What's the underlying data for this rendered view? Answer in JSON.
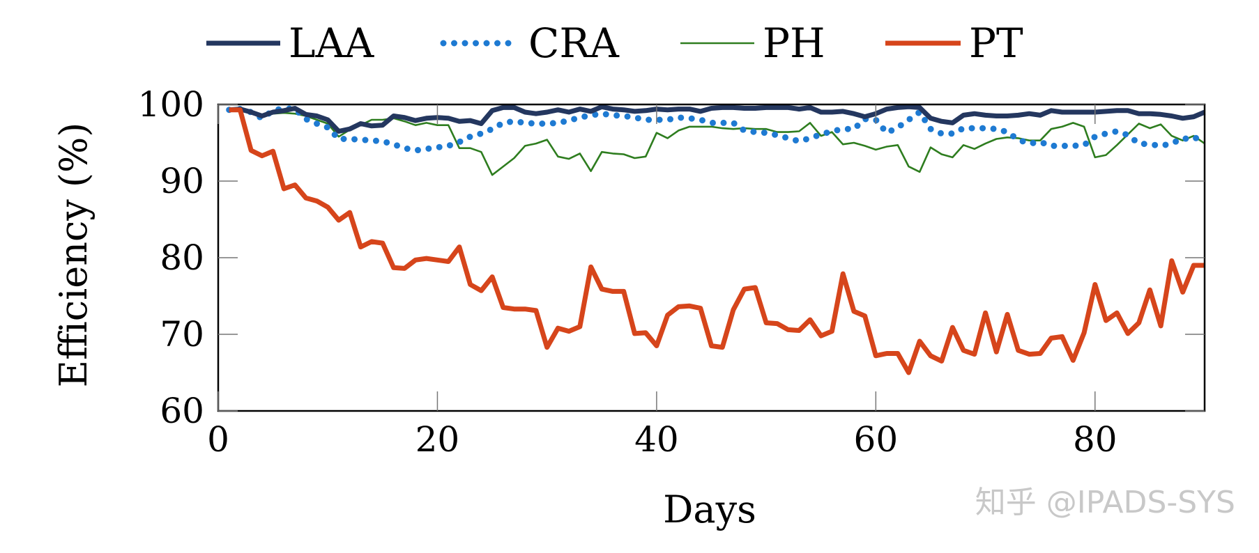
{
  "chart_data": {
    "type": "line",
    "title": "",
    "xlabel": "Days",
    "ylabel": "Efficiency (%)",
    "xlim": [
      0,
      90
    ],
    "ylim": [
      60,
      100
    ],
    "xticks": [
      0,
      20,
      40,
      60,
      80
    ],
    "yticks": [
      60,
      70,
      80,
      90,
      100
    ],
    "grid": false,
    "legend_position": "top",
    "x": [
      1,
      2,
      3,
      4,
      5,
      6,
      7,
      8,
      9,
      10,
      11,
      12,
      13,
      14,
      15,
      16,
      17,
      18,
      19,
      20,
      21,
      22,
      23,
      24,
      25,
      26,
      27,
      28,
      29,
      30,
      31,
      32,
      33,
      34,
      35,
      36,
      37,
      38,
      39,
      40,
      41,
      42,
      43,
      44,
      45,
      46,
      47,
      48,
      49,
      50,
      51,
      52,
      53,
      54,
      55,
      56,
      57,
      58,
      59,
      60,
      61,
      62,
      63,
      64,
      65,
      66,
      67,
      68,
      69,
      70,
      71,
      72,
      73,
      74,
      75,
      76,
      77,
      78,
      79,
      80,
      81,
      82,
      83,
      84,
      85,
      86,
      87,
      88,
      89,
      90
    ],
    "series": [
      {
        "name": "LAA",
        "color": "#24375f",
        "style": "solid-thick",
        "values": [
          99.3,
          99.4,
          99.0,
          98.5,
          99.0,
          99.2,
          99.5,
          98.7,
          98.5,
          98.0,
          96.5,
          96.8,
          97.5,
          97.2,
          97.3,
          98.5,
          98.3,
          97.9,
          98.2,
          98.3,
          98.2,
          97.8,
          97.9,
          97.5,
          99.2,
          99.6,
          99.6,
          99.0,
          98.8,
          99.0,
          99.3,
          99.0,
          99.4,
          99.1,
          99.7,
          99.4,
          99.3,
          99.1,
          99.2,
          99.4,
          99.3,
          99.4,
          99.4,
          99.1,
          99.5,
          99.6,
          99.6,
          99.5,
          99.5,
          99.6,
          99.6,
          99.6,
          99.4,
          99.6,
          99.0,
          99.0,
          99.1,
          98.8,
          98.4,
          98.8,
          99.4,
          99.6,
          99.7,
          99.6,
          98.2,
          97.8,
          97.6,
          98.6,
          98.8,
          98.6,
          98.5,
          98.5,
          98.6,
          98.8,
          98.6,
          99.2,
          99.0,
          99.0,
          99.0,
          99.0,
          99.1,
          99.2,
          99.2,
          98.8,
          98.8,
          98.7,
          98.5,
          98.2,
          98.4,
          99.0
        ]
      },
      {
        "name": "CRA",
        "color": "#1e7ad2",
        "style": "dotted",
        "values": [
          99.3,
          99.4,
          99.0,
          98.2,
          99.2,
          99.5,
          99.4,
          98.1,
          97.5,
          97.0,
          95.5,
          95.5,
          95.4,
          95.3,
          95.2,
          94.8,
          94.3,
          94.0,
          94.2,
          94.4,
          94.6,
          95.1,
          95.8,
          96.2,
          96.8,
          97.6,
          97.8,
          97.6,
          97.5,
          97.5,
          97.6,
          97.9,
          98.3,
          98.6,
          98.8,
          98.6,
          98.5,
          98.3,
          98.0,
          98.0,
          98.0,
          98.3,
          98.2,
          98.0,
          97.6,
          97.6,
          97.6,
          96.6,
          96.4,
          96.3,
          96.0,
          95.6,
          95.2,
          95.6,
          96.1,
          96.5,
          96.8,
          96.8,
          98.1,
          98.0,
          96.3,
          97.0,
          98.0,
          99.0,
          96.8,
          96.2,
          96.2,
          96.9,
          96.9,
          96.9,
          96.8,
          96.4,
          95.4,
          94.9,
          95.1,
          94.6,
          94.6,
          94.6,
          94.7,
          95.8,
          96.2,
          96.5,
          96.0,
          94.9,
          94.8,
          94.6,
          94.9,
          95.6,
          95.4,
          96.4
        ]
      },
      {
        "name": "PH",
        "color": "#2e7d1f",
        "style": "solid-thin",
        "values": [
          99.3,
          99.4,
          99.0,
          98.5,
          98.8,
          98.9,
          98.8,
          98.5,
          98.0,
          97.5,
          95.8,
          96.7,
          97.3,
          98.0,
          98.0,
          98.2,
          97.8,
          97.3,
          97.6,
          97.3,
          97.3,
          94.3,
          94.3,
          93.8,
          90.8,
          91.9,
          93.0,
          94.6,
          94.9,
          95.4,
          93.2,
          92.9,
          93.6,
          91.3,
          93.8,
          93.6,
          93.5,
          93.0,
          93.2,
          96.3,
          95.6,
          96.6,
          97.1,
          97.1,
          97.1,
          96.9,
          96.8,
          96.9,
          96.8,
          96.8,
          96.4,
          96.4,
          96.5,
          97.6,
          95.9,
          96.4,
          94.8,
          95.0,
          94.6,
          94.1,
          94.5,
          94.7,
          91.9,
          91.2,
          94.4,
          93.5,
          93.1,
          94.7,
          94.2,
          94.9,
          95.5,
          95.7,
          95.6,
          95.3,
          95.3,
          96.8,
          97.1,
          97.6,
          97.1,
          93.1,
          93.4,
          94.7,
          96.1,
          97.5,
          96.9,
          97.4,
          95.9,
          95.3,
          95.9,
          94.9
        ]
      },
      {
        "name": "PT",
        "color": "#d6451b",
        "style": "solid-thick",
        "values": [
          99.3,
          99.3,
          94.0,
          93.3,
          93.9,
          89.0,
          89.5,
          87.8,
          87.4,
          86.6,
          84.9,
          85.9,
          81.4,
          82.1,
          81.9,
          78.7,
          78.6,
          79.7,
          79.9,
          79.7,
          79.5,
          81.4,
          76.5,
          75.7,
          77.5,
          73.5,
          73.3,
          73.3,
          73.1,
          68.3,
          70.8,
          70.4,
          71.0,
          78.8,
          75.9,
          75.6,
          75.6,
          70.1,
          70.2,
          68.5,
          72.5,
          73.6,
          73.7,
          73.4,
          68.5,
          68.3,
          73.2,
          75.9,
          76.1,
          71.5,
          71.4,
          70.6,
          70.5,
          71.9,
          69.8,
          70.4,
          77.9,
          73.0,
          72.4,
          67.2,
          67.5,
          67.5,
          65.0,
          69.1,
          67.2,
          66.5,
          70.9,
          67.9,
          67.4,
          72.8,
          67.7,
          72.6,
          67.9,
          67.4,
          67.5,
          69.5,
          69.7,
          66.6,
          70.2,
          76.5,
          71.8,
          72.8,
          70.1,
          71.5,
          75.8,
          71.1,
          79.6,
          75.5,
          79.0,
          79.0
        ]
      }
    ]
  },
  "watermark": "知乎 @IPADS-SYS"
}
